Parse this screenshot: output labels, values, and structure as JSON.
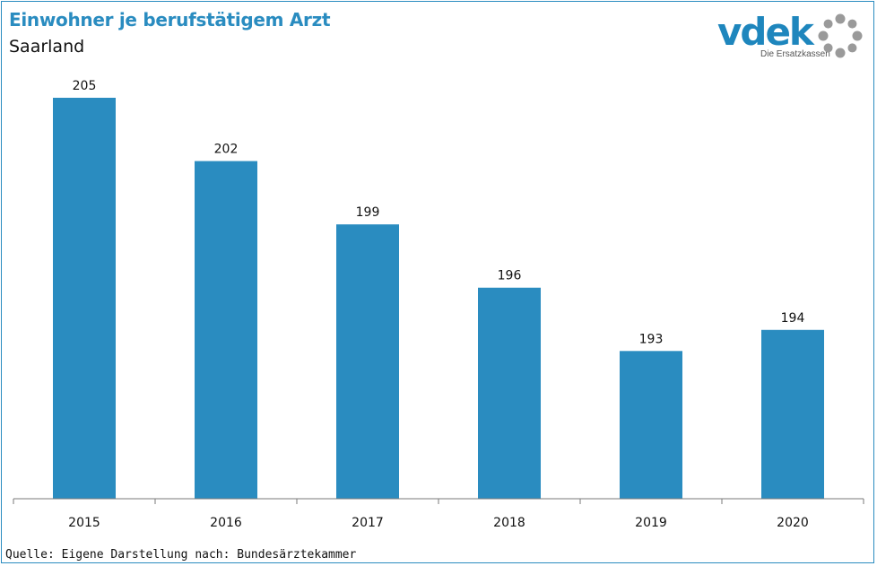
{
  "header": {
    "title": "Einwohner je berufstätigem Arzt",
    "subtitle": "Saarland"
  },
  "logo": {
    "wordmark": "vdek",
    "tagline": "Die Ersatzkassen"
  },
  "footer": {
    "source": "Quelle: Eigene Darstellung nach: Bundesärztekammer"
  },
  "colors": {
    "bar": "#2a8cc0",
    "accent": "#2a8cc0",
    "logo_ring": "#9a9a9a"
  },
  "chart_data": {
    "type": "bar",
    "title": "Einwohner je berufstätigem Arzt",
    "subtitle": "Saarland",
    "categories": [
      "2015",
      "2016",
      "2017",
      "2018",
      "2019",
      "2020"
    ],
    "values": [
      205,
      202,
      199,
      196,
      193,
      194
    ],
    "ylim": [
      186,
      205
    ],
    "grid": false,
    "legend": "none",
    "data_labels": true
  }
}
